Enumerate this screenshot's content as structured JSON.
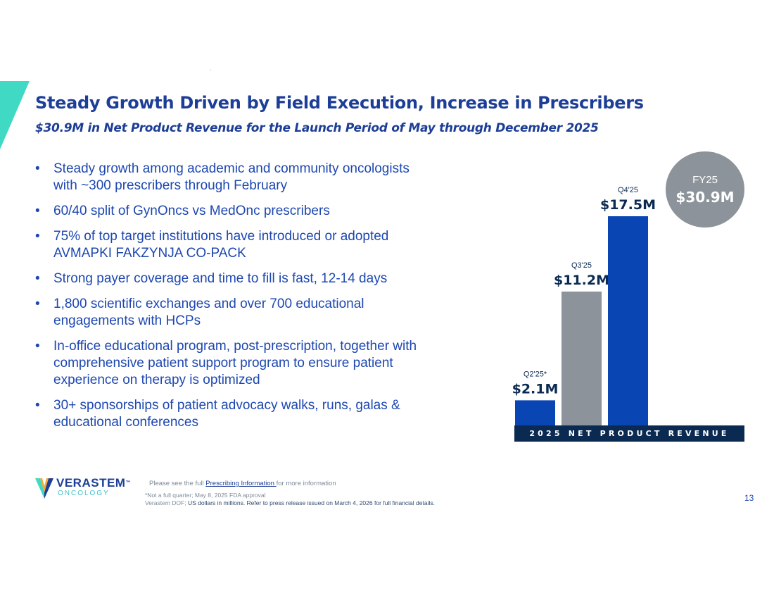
{
  "slide": {
    "title": "Steady Growth Driven by Field Execution, Increase in Prescribers",
    "subtitle": "$30.9M in Net Product Revenue for the Launch Period of May through December 2025",
    "page_number": "13",
    "colors": {
      "accent_teal": "#3fd9c4",
      "primary_blue": "#1d3e96",
      "bar_blue": "#0a45b4",
      "bar_gray": "#8c939a",
      "navy": "#0b2a52"
    }
  },
  "bullets": [
    {
      "line1": "Steady growth among academic and community oncologists",
      "line2": "with ~300 prescribers through February"
    },
    {
      "line1": "60/40 split of GynOncs vs MedOnc prescribers"
    },
    {
      "line1": "75% of top target institutions have introduced or adopted",
      "line2": "AVMAPKI FAKZYNJA CO-PACK"
    },
    {
      "line1": "Strong payer coverage and time to fill is fast, 12-14 days"
    },
    {
      "line1": "1,800 scientific exchanges and over 700 educational",
      "line2": "engagements with HCPs"
    },
    {
      "line1": "In-office educational program, post-prescription, together with",
      "line2": "comprehensive patient support program to ensure patient",
      "line3": "experience on therapy is optimized"
    },
    {
      "line1": "30+ sponsorships of patient advocacy walks, runs, galas &",
      "line2": "educational conferences"
    }
  ],
  "bullet_glyph": "•",
  "chart_data": {
    "type": "bar",
    "title": "2025 NET PRODUCT REVENUE",
    "categories": [
      "Q2'25*",
      "Q3'25",
      "Q4'25"
    ],
    "values": [
      2.1,
      11.2,
      17.5
    ],
    "data_labels": [
      "$2.1M",
      "$11.2M",
      "$17.5M"
    ],
    "units": "US dollars in millions",
    "bar_colors": [
      "#0a45b4",
      "#8c939a",
      "#0a45b4"
    ],
    "ylim": [
      0,
      17.5
    ],
    "grid": false,
    "total": {
      "label": "FY25",
      "value": "$30.9M"
    }
  },
  "footer": {
    "logo_name": "VERASTEM",
    "logo_trademark": "™",
    "logo_sub": "ONCOLOGY",
    "note_prefix": "Please see the full ",
    "note_link": "Prescribing Information ",
    "note_suffix": "for more information",
    "footnote_quarter": "*Not a full quarter; May 8, 2025 FDA approval",
    "footnote_source_prefix": "Verastem DOF; ",
    "footnote_source_rest": "US dollars in millions. Refer to press release issued on March 4, 2026 for full financial details."
  }
}
